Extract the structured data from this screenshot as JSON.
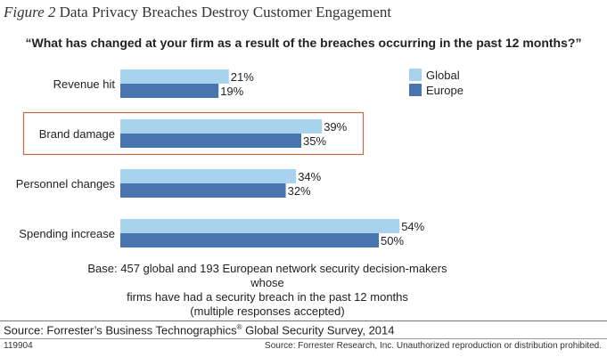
{
  "figure": {
    "number": "Figure 2",
    "title": "Data Privacy Breaches Destroy Customer Engagement"
  },
  "chart_data": {
    "type": "bar",
    "orientation": "horizontal",
    "title": "“What has changed at your firm as a result of the breaches occurring in the past 12 months?”",
    "categories": [
      "Revenue hit",
      "Brand damage",
      "Personnel changes",
      "Spending increase"
    ],
    "series": [
      {
        "name": "Global",
        "values": [
          21,
          39,
          34,
          54
        ],
        "color": "#a8d3ef"
      },
      {
        "name": "Europe",
        "values": [
          19,
          35,
          32,
          50
        ],
        "color": "#4874b0"
      }
    ],
    "value_suffix": "%",
    "highlighted_category": "Brand damage",
    "highlight_color": "#b5704a",
    "legend_position": "top-right",
    "xlim": [
      0,
      100
    ],
    "grid": false
  },
  "notes": {
    "base_lines": [
      "Base: 457 global and 193 European network security decision-makers whose",
      "firms have had a security breach in the past 12 months",
      "(multiple responses accepted)"
    ],
    "source_prefix": "Source: Forrester’s Business Technographics",
    "source_mark": "®",
    "source_suffix": " Global Security Survey, 2014",
    "doc_id": "119904",
    "copyright": "Source: Forrester Research, Inc. Unauthorized reproduction or distribution prohibited."
  }
}
